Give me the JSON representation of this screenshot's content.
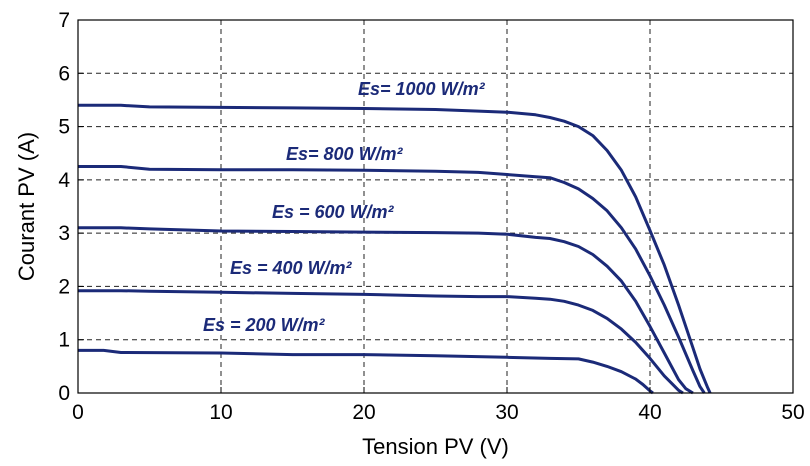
{
  "chart_data": {
    "type": "line",
    "xlabel": "Tension PV (V)",
    "ylabel": "Courant PV (A)",
    "xlim": [
      0,
      50
    ],
    "ylim": [
      0,
      7
    ],
    "xticks": [
      0,
      10,
      20,
      30,
      40,
      50
    ],
    "yticks": [
      0,
      1,
      2,
      3,
      4,
      5,
      6,
      7
    ],
    "grid": true,
    "line_color": "#1b2a78",
    "series": [
      {
        "label": "Es= 1000 W/m²",
        "x": [
          0,
          3,
          5,
          10,
          15,
          20,
          25,
          28,
          30,
          32,
          33,
          34,
          35,
          36,
          37,
          38,
          39,
          40,
          41,
          42,
          43,
          43.5,
          44,
          44.2
        ],
        "y": [
          5.4,
          5.4,
          5.37,
          5.36,
          5.35,
          5.34,
          5.32,
          5.29,
          5.27,
          5.22,
          5.17,
          5.1,
          5.0,
          4.83,
          4.55,
          4.18,
          3.68,
          3.05,
          2.4,
          1.65,
          0.85,
          0.45,
          0.12,
          0.0
        ]
      },
      {
        "label": "Es= 800 W/m²",
        "x": [
          0,
          3,
          5,
          10,
          15,
          20,
          25,
          28,
          30,
          32,
          33,
          34,
          35,
          36,
          37,
          38,
          39,
          40,
          41,
          42,
          43,
          43.5,
          43.8
        ],
        "y": [
          4.25,
          4.25,
          4.2,
          4.19,
          4.19,
          4.18,
          4.16,
          4.14,
          4.1,
          4.06,
          4.04,
          3.95,
          3.83,
          3.65,
          3.42,
          3.1,
          2.7,
          2.2,
          1.65,
          1.05,
          0.42,
          0.12,
          0.0
        ]
      },
      {
        "label": "Es = 600 W/m²",
        "x": [
          0,
          3,
          5,
          10,
          15,
          20,
          25,
          28,
          30,
          32,
          33,
          34,
          35,
          36,
          37,
          38,
          39,
          40,
          41,
          42,
          42.5,
          43
        ],
        "y": [
          3.1,
          3.1,
          3.08,
          3.04,
          3.03,
          3.02,
          3.01,
          3.0,
          2.98,
          2.92,
          2.9,
          2.84,
          2.75,
          2.6,
          2.38,
          2.1,
          1.72,
          1.25,
          0.75,
          0.25,
          0.08,
          0.0
        ]
      },
      {
        "label": "Es = 400 W/m²",
        "x": [
          0,
          3,
          5,
          10,
          15,
          20,
          25,
          28,
          30,
          32,
          33,
          34,
          35,
          36,
          37,
          38,
          39,
          40,
          41,
          42,
          42.3
        ],
        "y": [
          1.92,
          1.92,
          1.91,
          1.89,
          1.87,
          1.85,
          1.82,
          1.81,
          1.81,
          1.78,
          1.76,
          1.72,
          1.65,
          1.55,
          1.4,
          1.2,
          0.95,
          0.65,
          0.32,
          0.05,
          0.0
        ]
      },
      {
        "label": "Es = 200 W/m²",
        "x": [
          0,
          1.8,
          3,
          10,
          15,
          20,
          25,
          30,
          33,
          35,
          36,
          37,
          38,
          39,
          39.5,
          40,
          40.2
        ],
        "y": [
          0.8,
          0.8,
          0.76,
          0.75,
          0.72,
          0.72,
          0.7,
          0.67,
          0.65,
          0.64,
          0.58,
          0.5,
          0.4,
          0.26,
          0.16,
          0.04,
          0.0
        ]
      }
    ]
  }
}
